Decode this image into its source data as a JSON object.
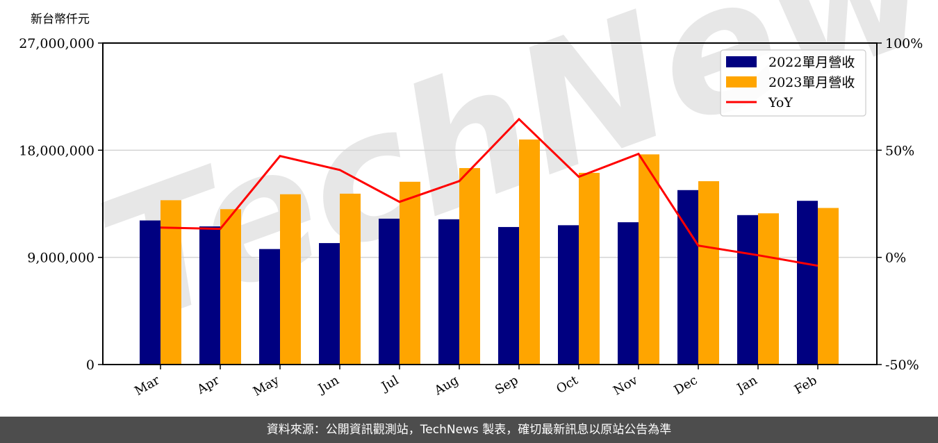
{
  "chart_data": {
    "type": "bar",
    "title": "",
    "unit_label": "新台幣仟元",
    "xlabel": "",
    "ylabel": "新台幣仟元",
    "categories": [
      "Mar",
      "Apr",
      "May",
      "Jun",
      "Jul",
      "Aug",
      "Sep",
      "Oct",
      "Nov",
      "Dec",
      "Jan",
      "Feb"
    ],
    "series": [
      {
        "name": "2022單月營收",
        "type": "bar",
        "axis": "left",
        "color": "#000080",
        "values": [
          12100000,
          11600000,
          9700000,
          10200000,
          12250000,
          12200000,
          11550000,
          11700000,
          11950000,
          14650000,
          12550000,
          13750000
        ]
      },
      {
        "name": "2023單月營收",
        "type": "bar",
        "axis": "left",
        "color": "#FFA500",
        "values": [
          13800000,
          13050000,
          14300000,
          14350000,
          15350000,
          16500000,
          18900000,
          16100000,
          17650000,
          15400000,
          12700000,
          13150000
        ]
      },
      {
        "name": "YoY",
        "type": "line",
        "axis": "right",
        "color": "#FF0000",
        "values": [
          13.9,
          13.3,
          47.3,
          40.8,
          25.9,
          35.6,
          64.5,
          37.6,
          48.3,
          5.5,
          1.0,
          -3.9
        ]
      }
    ],
    "ylim": [
      0,
      27000000
    ],
    "yticks": [
      0,
      9000000,
      18000000,
      27000000
    ],
    "ytick_labels": [
      "0",
      "9,000,000",
      "18,000,000",
      "27,000,000"
    ],
    "y2lim": [
      -50,
      100
    ],
    "y2ticks": [
      -50,
      0,
      50,
      100
    ],
    "y2tick_labels": [
      "-50%",
      "0%",
      "50%",
      "100%"
    ],
    "grid": "horizontal",
    "legend_position": "upper right",
    "watermark": "TechNews"
  },
  "footer": {
    "text": "資料來源：公開資訊觀測站，TechNews 製表，確切最新訊息以原站公告為準"
  }
}
